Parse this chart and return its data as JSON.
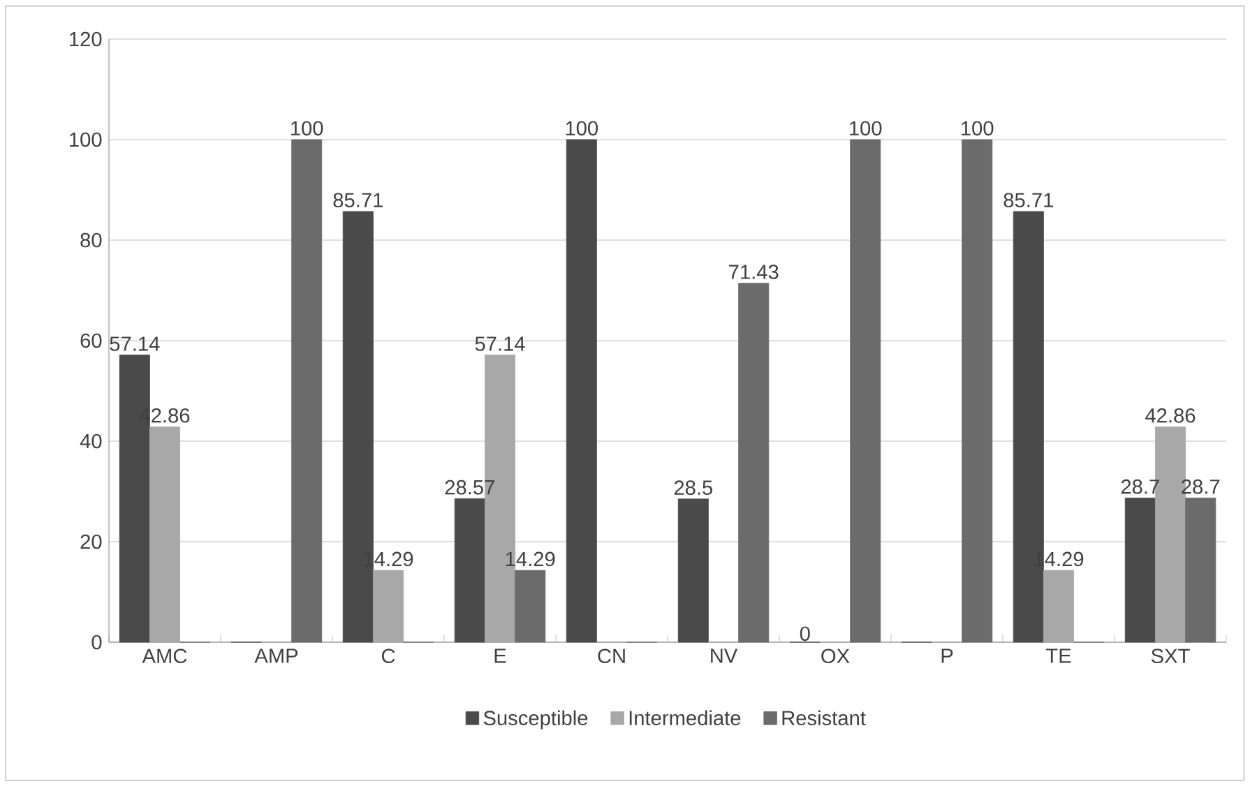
{
  "chart_data": {
    "type": "bar",
    "categories": [
      "AMC",
      "AMP",
      "C",
      "E",
      "CN",
      "NV",
      "OX",
      "P",
      "TE",
      "SXT"
    ],
    "series": [
      {
        "name": "Susceptible",
        "color": "#4a4a4a",
        "values": [
          57.14,
          0,
          85.71,
          28.57,
          100,
          28.5,
          0,
          0,
          85.71,
          28.7
        ],
        "value_labels": [
          "57.14",
          null,
          "85.71",
          "28.57",
          "100",
          "28.5",
          "0",
          null,
          "85.71",
          "28.7"
        ]
      },
      {
        "name": "Intermediate",
        "color": "#a8a8a8",
        "values": [
          42.86,
          0,
          14.29,
          57.14,
          0,
          0,
          0,
          0,
          14.29,
          42.86
        ],
        "value_labels": [
          "42.86",
          null,
          "14.29",
          "57.14",
          null,
          null,
          null,
          null,
          "14.29",
          "42.86"
        ]
      },
      {
        "name": "Resistant",
        "color": "#6b6b6b",
        "values": [
          0,
          100,
          0,
          14.29,
          0,
          71.43,
          100,
          100,
          0,
          28.7
        ],
        "value_labels": [
          null,
          "100",
          null,
          "14.29",
          null,
          "71.43",
          "100",
          "100",
          null,
          "28.7"
        ]
      }
    ],
    "ylim": [
      0,
      120
    ],
    "yticks": [
      0,
      20,
      40,
      60,
      80,
      100,
      120
    ],
    "grid": "y",
    "legend": "bottom"
  }
}
